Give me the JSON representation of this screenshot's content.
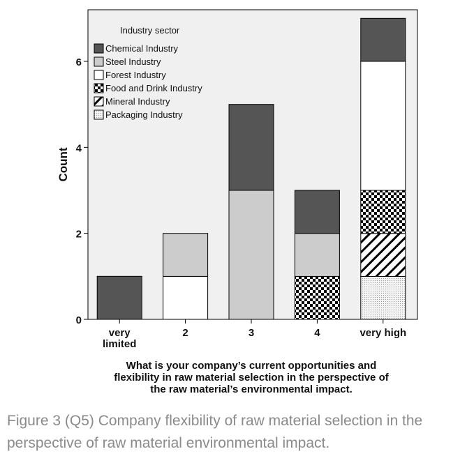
{
  "chart_data": {
    "type": "bar",
    "stacked": true,
    "title": "",
    "ylabel": "Count",
    "xlabel_lines": [
      "What is your company’s current opportunities and",
      "flexibility in raw material selection in the perspective of",
      "the raw material’s environmental impact."
    ],
    "categories": [
      "very\nlimited",
      "2",
      "3",
      "4",
      "very high"
    ],
    "category_lines": [
      [
        "very",
        "limited"
      ],
      [
        "2"
      ],
      [
        "3"
      ],
      [
        "4"
      ],
      [
        "very high"
      ]
    ],
    "ylim": [
      0,
      7.2
    ],
    "yticks": [
      0,
      2,
      4,
      6
    ],
    "grid": false,
    "legend_title": "Industry sector",
    "legend_position": "top-left",
    "series": [
      {
        "name": "Packaging Industry",
        "pattern": "dots",
        "color": "#e8e8e8",
        "values": [
          0,
          0,
          0,
          0,
          1
        ]
      },
      {
        "name": "Mineral Industry",
        "pattern": "diagonal",
        "color": "#ffffff",
        "values": [
          0,
          0,
          0,
          0,
          1
        ]
      },
      {
        "name": "Food and Drink Industry",
        "pattern": "checker",
        "color": "#000000",
        "values": [
          0,
          0,
          0,
          1,
          1
        ]
      },
      {
        "name": "Forest Industry",
        "pattern": "solid",
        "color": "#ffffff",
        "values": [
          0,
          1,
          0,
          0,
          3
        ]
      },
      {
        "name": "Steel Industry",
        "pattern": "solid",
        "color": "#cccccc",
        "values": [
          0,
          1,
          3,
          1,
          0
        ]
      },
      {
        "name": "Chemical Industry",
        "pattern": "solid",
        "color": "#555555",
        "values": [
          1,
          0,
          2,
          1,
          1
        ]
      }
    ],
    "legend_order": [
      "Chemical Industry",
      "Steel Industry",
      "Forest Industry",
      "Food and Drink Industry",
      "Mineral Industry",
      "Packaging Industry"
    ]
  },
  "caption": "Figure 3 (Q5) Company flexibility of raw material selection in the perspective of raw material environmental impact."
}
